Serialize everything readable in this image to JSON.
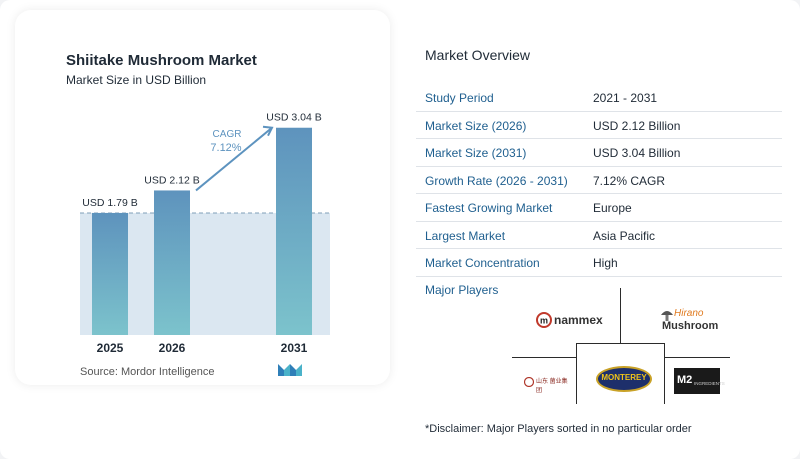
{
  "chart_data": {
    "type": "bar",
    "title": "Shiitake Mushroom Market",
    "subtitle": "Market Size in USD Billion",
    "categories": [
      "2025",
      "2026",
      "2031"
    ],
    "values": [
      1.79,
      2.12,
      3.04
    ],
    "data_labels": [
      "USD 1.79 B",
      "USD 2.12 B",
      "USD 3.04 B"
    ],
    "cagr_label": "CAGR",
    "cagr_value": "7.12%",
    "ylim": [
      0,
      3.3
    ],
    "grid": false,
    "colors": {
      "bar_top": "#5e93bd",
      "bar_bottom": "#7cc3cc",
      "band": "#dbe7f1",
      "arrow": "#5d93bf",
      "cagr_text": "#5d93bf"
    }
  },
  "source": "Source:  Mordor Intelligence",
  "overview": {
    "title": "Market Overview",
    "rows": [
      {
        "label": "Study Period",
        "value": "2021 - 2031"
      },
      {
        "label": "Market Size (2026)",
        "value": "USD 2.12 Billion"
      },
      {
        "label": "Market Size (2031)",
        "value": "USD 3.04 Billion"
      },
      {
        "label": "Growth Rate (2026 - 2031)",
        "value": "7.12% CAGR"
      },
      {
        "label": "Fastest Growing Market",
        "value": "Europe"
      },
      {
        "label": "Largest Market",
        "value": "Asia Pacific"
      },
      {
        "label": "Market Concentration",
        "value": "High"
      }
    ]
  },
  "players": {
    "title": "Major Players",
    "logos": [
      {
        "name": "nammex-logo",
        "text": "nammex"
      },
      {
        "name": "hirano-mushroom-logo",
        "text": "Hirano Mushroom"
      },
      {
        "name": "shiitake-company-logo",
        "text": "山东 菌业集团"
      },
      {
        "name": "monterey-logo",
        "text": "MONTEREY"
      },
      {
        "name": "m2-ingredients-logo",
        "text": "M2 INGREDIENTS"
      }
    ]
  },
  "disclaimer": "*Disclaimer: Major Players sorted in no particular order"
}
